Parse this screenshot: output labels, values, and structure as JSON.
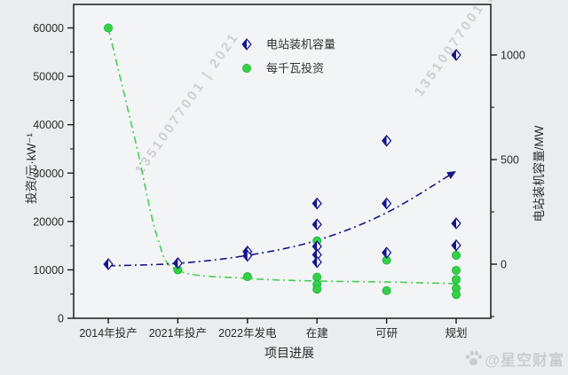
{
  "page": {
    "background": "#e9edef",
    "plot_background": "#f2f4f5"
  },
  "watermarks": {
    "diagonal_text": "13510077001 | 2021",
    "brand_text": "@星空财富"
  },
  "chart_data": {
    "type": "scatter",
    "title": "",
    "xlabel": "项目进展",
    "ylabel_left": "投资/元·kW⁻¹",
    "ylabel_right": "电站装机容量/MW",
    "categories": [
      "2014年投产",
      "2021年投产",
      "2022年发电",
      "在建",
      "可研",
      "规划"
    ],
    "left_axis": {
      "min": 0,
      "max": 64900,
      "major_ticks": [
        0,
        10000,
        20000,
        30000,
        40000,
        50000,
        60000
      ],
      "minor_ticks": [
        5000,
        15000,
        25000,
        35000,
        45000,
        55000
      ]
    },
    "right_axis": {
      "min": -260,
      "max": 1240,
      "major_ticks": [
        0,
        500,
        1000
      ],
      "minor_ticks": [
        -250,
        250,
        750
      ]
    },
    "grid": false,
    "legend_position": "upper-right-inside",
    "legend": [
      {
        "label": "电站装机容量",
        "marker": "half-diamond",
        "color": "#16168a"
      },
      {
        "label": "每千瓦投资",
        "marker": "circle",
        "color": "#35d04a"
      }
    ],
    "series": [
      {
        "name": "每千瓦投资",
        "axis": "left",
        "unit": "元/kW",
        "marker": "circle",
        "color": "#35d04a",
        "points": [
          {
            "category": "2014年投产",
            "value": 60000
          },
          {
            "category": "2021年投产",
            "value": 10000
          },
          {
            "category": "2022年发电",
            "value": 8600
          },
          {
            "category": "在建",
            "value": 16000
          },
          {
            "category": "在建",
            "value": 8500
          },
          {
            "category": "在建",
            "value": 7000
          },
          {
            "category": "在建",
            "value": 6000
          },
          {
            "category": "可研",
            "value": 12000
          },
          {
            "category": "可研",
            "value": 5700
          },
          {
            "category": "规划",
            "value": 13000
          },
          {
            "category": "规划",
            "value": 9900
          },
          {
            "category": "规划",
            "value": 8000
          },
          {
            "category": "规划",
            "value": 6200
          },
          {
            "category": "规划",
            "value": 4900
          }
        ]
      },
      {
        "name": "电站装机容量",
        "axis": "right",
        "unit": "MW",
        "marker": "half-diamond",
        "color": "#16168a",
        "points": [
          {
            "category": "2014年投产",
            "value": 0
          },
          {
            "category": "2021年投产",
            "value": 5
          },
          {
            "category": "2022年发电",
            "value": 60
          },
          {
            "category": "2022年发电",
            "value": 40
          },
          {
            "category": "在建",
            "value": 290
          },
          {
            "category": "在建",
            "value": 190
          },
          {
            "category": "在建",
            "value": 85
          },
          {
            "category": "在建",
            "value": 45
          },
          {
            "category": "在建",
            "value": 10
          },
          {
            "category": "可研",
            "value": 590
          },
          {
            "category": "可研",
            "value": 290
          },
          {
            "category": "可研",
            "value": 55
          },
          {
            "category": "规划",
            "value": 1000
          },
          {
            "category": "规划",
            "value": 195
          },
          {
            "category": "规划",
            "value": 90
          }
        ]
      }
    ],
    "trends": [
      {
        "series": "每千瓦投资",
        "axis": "left",
        "style": "dash-dot",
        "color": "#45d055",
        "arrow_end": false,
        "samples": [
          [
            0,
            60000
          ],
          [
            0.4,
            36000
          ],
          [
            0.7,
            17000
          ],
          [
            1,
            9900
          ],
          [
            2,
            8240
          ],
          [
            3,
            7700
          ],
          [
            4,
            7500
          ],
          [
            5,
            7150
          ]
        ]
      },
      {
        "series": "电站装机容量",
        "axis": "right",
        "style": "dash-dot",
        "color": "#16168a",
        "arrow_end": true,
        "samples": [
          [
            0,
            -8
          ],
          [
            1,
            4
          ],
          [
            2,
            42
          ],
          [
            3,
            114
          ],
          [
            4,
            246
          ],
          [
            5,
            445
          ]
        ]
      }
    ]
  }
}
